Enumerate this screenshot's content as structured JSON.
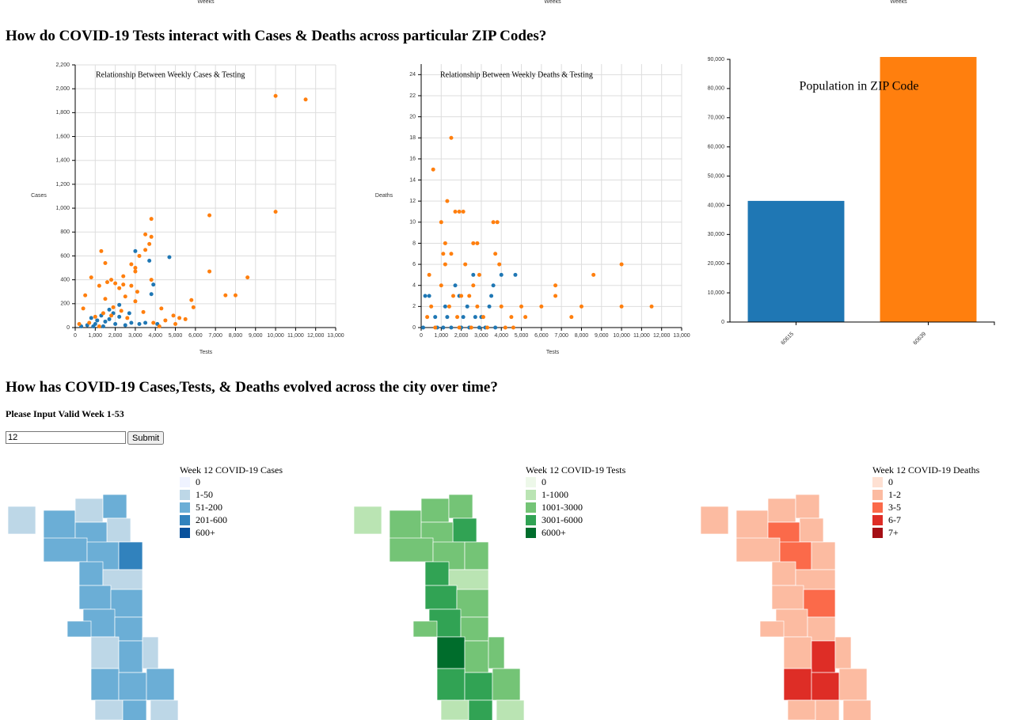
{
  "page": {
    "weeks_labels": [
      "Weeks",
      "Weeks",
      "Weeks"
    ],
    "heading1": "How do COVID-19 Tests interact with Cases & Deaths across particular ZIP Codes?",
    "heading2": "How has COVID-19 Cases,Tests, & Deaths evolved across the city over time?",
    "form": {
      "label": "Please Input Valid Week 1-53",
      "input_value": "12",
      "button": "Submit"
    }
  },
  "chart_data": [
    {
      "type": "scatter",
      "title": "Relationship Between Weekly Cases & Testing",
      "x_label": "Tests",
      "y_label": "Cases",
      "grid": true,
      "xlim": [
        0,
        13000
      ],
      "ylim": [
        0,
        2200
      ],
      "xticks": [
        0,
        {
          "value": 1000,
          "label": "1,000"
        },
        {
          "value": 2000,
          "label": "2,000"
        },
        {
          "value": 3000,
          "label": "3,000"
        },
        {
          "value": 4000,
          "label": "4,000"
        },
        {
          "value": 5000,
          "label": "5,000"
        },
        {
          "value": 6000,
          "label": "6,000"
        },
        {
          "value": 7000,
          "label": "7,000"
        },
        {
          "value": 8000,
          "label": "8,000"
        },
        {
          "value": 9000,
          "label": "9,000"
        },
        {
          "value": 10000,
          "label": "10,000"
        },
        {
          "value": 11000,
          "label": "11,000"
        },
        {
          "value": 12000,
          "label": "12,000"
        },
        {
          "value": 13000,
          "label": "13,000"
        }
      ],
      "yticks": [
        0,
        200,
        400,
        600,
        800,
        {
          "value": 1000,
          "label": "1,000"
        },
        {
          "value": 1200,
          "label": "1,200"
        },
        {
          "value": 1400,
          "label": "1,400"
        },
        {
          "value": 1600,
          "label": "1,600"
        },
        {
          "value": 1800,
          "label": "1,800"
        },
        {
          "value": 2000,
          "label": "2,000"
        },
        {
          "value": 2200,
          "label": "2,200"
        }
      ],
      "series": [
        {
          "color": "#1f77b4",
          "x": [
            3000,
            4700,
            3700,
            3900,
            3800,
            2200,
            1700,
            1900,
            1300,
            800,
            1100,
            1500,
            2000,
            2500,
            2800,
            3200,
            600,
            900,
            1400,
            1700,
            2200,
            3500,
            4100,
            300,
            2700,
            1000
          ],
          "values": [
            640,
            590,
            560,
            360,
            280,
            190,
            150,
            120,
            100,
            80,
            60,
            50,
            30,
            20,
            40,
            30,
            20,
            10,
            10,
            70,
            90,
            40,
            30,
            10,
            120,
            30
          ]
        },
        {
          "color": "#ff7f0e",
          "x": [
            10000,
            11500,
            10000,
            6700,
            3800,
            3500,
            3800,
            3700,
            3500,
            1300,
            3200,
            1500,
            2800,
            3000,
            6700,
            3000,
            2400,
            800,
            8600,
            1800,
            3800,
            1600,
            2000,
            2400,
            2800,
            1200,
            2200,
            3100,
            7500,
            8000,
            500,
            2500,
            1500,
            3000,
            5800,
            5900,
            4300,
            400,
            1900,
            2300,
            3400,
            4900,
            5200,
            4500,
            5500,
            1000,
            1400,
            1800,
            2600,
            3900,
            200,
            700,
            5000,
            4200,
            1200
          ],
          "values": [
            1940,
            1910,
            970,
            940,
            910,
            780,
            760,
            700,
            650,
            640,
            600,
            540,
            530,
            500,
            470,
            470,
            430,
            420,
            420,
            400,
            400,
            380,
            370,
            360,
            350,
            350,
            330,
            300,
            270,
            270,
            270,
            260,
            240,
            220,
            230,
            170,
            160,
            160,
            170,
            140,
            130,
            100,
            80,
            60,
            70,
            90,
            120,
            100,
            80,
            40,
            30,
            40,
            30,
            10,
            10
          ]
        }
      ]
    },
    {
      "type": "scatter",
      "title": "Relationship Between Weekly Deaths & Testing",
      "x_label": "Tests",
      "y_label": "Deaths",
      "grid": true,
      "xlim": [
        0,
        13000
      ],
      "ylim": [
        0,
        25
      ],
      "xticks": [
        0,
        {
          "value": 1000,
          "label": "1,000"
        },
        {
          "value": 2000,
          "label": "2,000"
        },
        {
          "value": 3000,
          "label": "3,000"
        },
        {
          "value": 4000,
          "label": "4,000"
        },
        {
          "value": 5000,
          "label": "5,000"
        },
        {
          "value": 6000,
          "label": "6,000"
        },
        {
          "value": 7000,
          "label": "7,000"
        },
        {
          "value": 8000,
          "label": "8,000"
        },
        {
          "value": 9000,
          "label": "9,000"
        },
        {
          "value": 10000,
          "label": "10,000"
        },
        {
          "value": 11000,
          "label": "11,000"
        },
        {
          "value": 12000,
          "label": "12,000"
        },
        {
          "value": 13000,
          "label": "13,000"
        }
      ],
      "yticks": [
        0,
        2,
        4,
        6,
        8,
        10,
        12,
        14,
        16,
        18,
        20,
        22,
        24
      ],
      "series": [
        {
          "color": "#1f77b4",
          "x": [
            2600,
            4000,
            4700,
            1700,
            3600,
            200,
            400,
            1900,
            3500,
            1200,
            2300,
            3400,
            700,
            1300,
            2100,
            2700,
            3000,
            100,
            800,
            1500,
            2000,
            2400,
            2900,
            3200,
            1100,
            3700
          ],
          "values": [
            5,
            5,
            5,
            4,
            4,
            3,
            3,
            3,
            3,
            2,
            2,
            2,
            1,
            1,
            1,
            1,
            1,
            0,
            0,
            0,
            0,
            0,
            0,
            0,
            0,
            0
          ]
        },
        {
          "color": "#ff7f0e",
          "x": [
            1500,
            600,
            1300,
            1700,
            1900,
            2100,
            1000,
            3600,
            3800,
            1200,
            2600,
            2800,
            1100,
            1500,
            3700,
            1200,
            2200,
            3900,
            10000,
            400,
            2900,
            8600,
            1000,
            2600,
            6700,
            1600,
            2000,
            6700,
            2400,
            500,
            1400,
            2800,
            4000,
            5000,
            6000,
            8000,
            10000,
            11500,
            7500,
            4500,
            5200,
            300,
            1800,
            3100,
            4200,
            4600,
            1900,
            2500,
            3300,
            700
          ],
          "values": [
            18,
            15,
            12,
            11,
            11,
            11,
            10,
            10,
            10,
            8,
            8,
            8,
            7,
            7,
            7,
            6,
            6,
            6,
            6,
            5,
            5,
            5,
            4,
            4,
            4,
            3,
            3,
            3,
            3,
            2,
            2,
            2,
            2,
            2,
            2,
            2,
            2,
            2,
            1,
            1,
            1,
            1,
            1,
            1,
            0,
            0,
            0,
            0,
            0,
            0
          ]
        }
      ]
    },
    {
      "type": "bar",
      "title": "Population in ZIP Code",
      "categories": [
        "60615",
        "60639"
      ],
      "values": [
        41500,
        91000
      ],
      "colors": [
        "#1f77b4",
        "#ff7f0e"
      ],
      "ylim": [
        0,
        90000
      ],
      "yticks": [
        0,
        {
          "value": 10000,
          "label": "10,000"
        },
        {
          "value": 20000,
          "label": "20,000"
        },
        {
          "value": 30000,
          "label": "30,000"
        },
        {
          "value": 40000,
          "label": "40,000"
        },
        {
          "value": 50000,
          "label": "50,000"
        },
        {
          "value": 60000,
          "label": "60,000"
        },
        {
          "value": 70000,
          "label": "70,000"
        },
        {
          "value": 80000,
          "label": "80,000"
        },
        {
          "value": 90000,
          "label": "90,000"
        }
      ]
    }
  ],
  "maps": [
    {
      "title": "Week 12 COVID-19 Cases",
      "legend": [
        {
          "label": "0",
          "color": "#eff3ff"
        },
        {
          "label": "1-50",
          "color": "#bdd7e7"
        },
        {
          "label": "51-200",
          "color": "#6baed6"
        },
        {
          "label": "201-600",
          "color": "#3182bd"
        },
        {
          "label": "600+",
          "color": "#08519c"
        }
      ]
    },
    {
      "title": "Week 12 COVID-19 Tests",
      "legend": [
        {
          "label": "0",
          "color": "#edf8e9"
        },
        {
          "label": "1-1000",
          "color": "#bae4b3"
        },
        {
          "label": "1001-3000",
          "color": "#74c476"
        },
        {
          "label": "3001-6000",
          "color": "#31a354"
        },
        {
          "label": "6000+",
          "color": "#006d2c"
        }
      ]
    },
    {
      "title": "Week 12 COVID-19 Deaths",
      "legend": [
        {
          "label": "0",
          "color": "#fee0d2"
        },
        {
          "label": "1-2",
          "color": "#fcbba1"
        },
        {
          "label": "3-5",
          "color": "#fb6a4a"
        },
        {
          "label": "6-7",
          "color": "#de2d26"
        },
        {
          "label": "7+",
          "color": "#a50f15"
        }
      ]
    }
  ]
}
